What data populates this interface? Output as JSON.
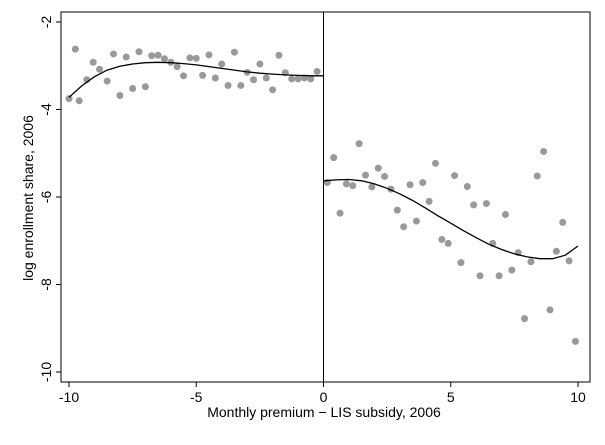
{
  "chart_data": {
    "type": "scatter",
    "title": "",
    "xlabel": "Monthly premium − LIS subsidy, 2006",
    "ylabel": "log enrollment share, 2006",
    "xlim": [
      -10,
      10
    ],
    "ylim": [
      -10,
      -2
    ],
    "xticks": [
      -10,
      -5,
      0,
      5,
      10
    ],
    "xtick_labels": [
      "-10",
      "-5",
      "0",
      "5",
      "10"
    ],
    "yticks": [
      -2,
      -4,
      -6,
      -8,
      -10
    ],
    "ytick_labels": [
      "-2",
      "-4",
      "-6",
      "-8",
      "-10"
    ],
    "grid": false,
    "cutoff_x": 0,
    "marker_color": "#999999",
    "fit_color": "#000000",
    "series": [
      {
        "points": [
          [
            -10.0,
            -3.75
          ],
          [
            -9.75,
            -2.62
          ],
          [
            -9.6,
            -3.8
          ],
          [
            -9.3,
            -3.32
          ],
          [
            -9.05,
            -2.92
          ],
          [
            -8.8,
            -3.08
          ],
          [
            -8.5,
            -3.35
          ],
          [
            -8.25,
            -2.73
          ],
          [
            -8.0,
            -3.68
          ],
          [
            -7.75,
            -2.8
          ],
          [
            -7.5,
            -3.52
          ],
          [
            -7.25,
            -2.68
          ],
          [
            -7.0,
            -3.48
          ],
          [
            -6.75,
            -2.77
          ],
          [
            -6.5,
            -2.76
          ],
          [
            -6.25,
            -2.84
          ],
          [
            -6.0,
            -2.92
          ],
          [
            -5.75,
            -3.02
          ],
          [
            -5.5,
            -3.23
          ],
          [
            -5.25,
            -2.82
          ],
          [
            -5.0,
            -2.83
          ],
          [
            -4.75,
            -3.22
          ],
          [
            -4.5,
            -2.75
          ],
          [
            -4.25,
            -3.28
          ],
          [
            -4.0,
            -2.96
          ],
          [
            -3.75,
            -3.45
          ],
          [
            -3.5,
            -2.69
          ],
          [
            -3.25,
            -3.45
          ],
          [
            -3.0,
            -3.15
          ],
          [
            -2.75,
            -3.32
          ],
          [
            -2.5,
            -2.96
          ],
          [
            -2.25,
            -3.28
          ],
          [
            -2.0,
            -3.55
          ],
          [
            -1.75,
            -2.76
          ],
          [
            -1.5,
            -3.16
          ],
          [
            -1.25,
            -3.3
          ],
          [
            -1.0,
            -3.3
          ],
          [
            -0.75,
            -3.28
          ],
          [
            -0.5,
            -3.3
          ],
          [
            -0.25,
            -3.13
          ]
        ]
      },
      {
        "points": [
          [
            0.15,
            -5.67
          ],
          [
            0.4,
            -5.1
          ],
          [
            0.65,
            -6.37
          ],
          [
            0.9,
            -5.7
          ],
          [
            1.15,
            -5.74
          ],
          [
            1.4,
            -4.78
          ],
          [
            1.65,
            -5.5
          ],
          [
            1.9,
            -5.77
          ],
          [
            2.15,
            -5.34
          ],
          [
            2.4,
            -5.53
          ],
          [
            2.65,
            -5.82
          ],
          [
            2.9,
            -6.3
          ],
          [
            3.15,
            -6.68
          ],
          [
            3.4,
            -5.72
          ],
          [
            3.65,
            -6.55
          ],
          [
            3.9,
            -5.67
          ],
          [
            4.15,
            -6.1
          ],
          [
            4.4,
            -5.23
          ],
          [
            4.65,
            -6.97
          ],
          [
            4.9,
            -7.06
          ],
          [
            5.15,
            -5.51
          ],
          [
            5.4,
            -7.5
          ],
          [
            5.65,
            -5.76
          ],
          [
            5.9,
            -6.18
          ],
          [
            6.15,
            -7.8
          ],
          [
            6.4,
            -6.15
          ],
          [
            6.65,
            -7.06
          ],
          [
            6.9,
            -7.8
          ],
          [
            7.15,
            -6.4
          ],
          [
            7.4,
            -7.67
          ],
          [
            7.65,
            -7.27
          ],
          [
            7.9,
            -8.78
          ],
          [
            8.15,
            -7.48
          ],
          [
            8.4,
            -5.52
          ],
          [
            8.65,
            -4.96
          ],
          [
            8.9,
            -8.58
          ],
          [
            9.15,
            -7.24
          ],
          [
            9.4,
            -6.58
          ],
          [
            9.65,
            -7.46
          ],
          [
            9.9,
            -9.3
          ]
        ]
      }
    ],
    "fits": [
      {
        "points": [
          [
            -10.0,
            -3.72
          ],
          [
            -9.5,
            -3.46
          ],
          [
            -9.0,
            -3.25
          ],
          [
            -8.5,
            -3.1
          ],
          [
            -8.0,
            -3.01
          ],
          [
            -7.5,
            -2.96
          ],
          [
            -7.0,
            -2.93
          ],
          [
            -6.5,
            -2.92
          ],
          [
            -6.0,
            -2.93
          ],
          [
            -5.5,
            -2.95
          ],
          [
            -5.0,
            -2.98
          ],
          [
            -4.5,
            -3.02
          ],
          [
            -4.0,
            -3.06
          ],
          [
            -3.5,
            -3.1
          ],
          [
            -3.0,
            -3.14
          ],
          [
            -2.5,
            -3.17
          ],
          [
            -2.0,
            -3.19
          ],
          [
            -1.5,
            -3.21
          ],
          [
            -1.0,
            -3.22
          ],
          [
            -0.5,
            -3.23
          ],
          [
            0.0,
            -3.23
          ]
        ]
      },
      {
        "points": [
          [
            0.0,
            -5.63
          ],
          [
            0.5,
            -5.61
          ],
          [
            1.0,
            -5.6
          ],
          [
            1.5,
            -5.63
          ],
          [
            2.0,
            -5.7
          ],
          [
            2.5,
            -5.8
          ],
          [
            3.0,
            -5.93
          ],
          [
            3.5,
            -6.08
          ],
          [
            4.0,
            -6.25
          ],
          [
            4.5,
            -6.43
          ],
          [
            5.0,
            -6.6
          ],
          [
            5.5,
            -6.77
          ],
          [
            6.0,
            -6.93
          ],
          [
            6.5,
            -7.08
          ],
          [
            7.0,
            -7.2
          ],
          [
            7.5,
            -7.3
          ],
          [
            8.0,
            -7.37
          ],
          [
            8.5,
            -7.41
          ],
          [
            9.0,
            -7.41
          ],
          [
            9.5,
            -7.33
          ],
          [
            10.0,
            -7.12
          ]
        ]
      }
    ]
  }
}
